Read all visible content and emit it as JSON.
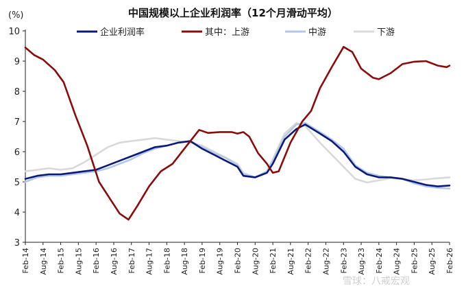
{
  "chart_data": {
    "type": "line",
    "title": "中国规模以上企业利润率（12个月滑动平均）",
    "unit_label": "(%)",
    "ylim": [
      3,
      10
    ],
    "yticks": [
      3,
      4,
      5,
      6,
      7,
      8,
      9,
      10
    ],
    "x_start": "2014-02",
    "x_end": "2026-02",
    "xticks": [
      "Feb-14",
      "Aug-14",
      "Feb-15",
      "Aug-15",
      "Feb-16",
      "Aug-16",
      "Feb-17",
      "Aug-17",
      "Feb-18",
      "Aug-18",
      "Feb-19",
      "Aug-19",
      "Feb-20",
      "Aug-20",
      "Feb-21",
      "Aug-21",
      "Feb-22",
      "Aug-22",
      "Feb-23",
      "Aug-23",
      "Feb-24",
      "Aug-24",
      "Feb-25",
      "Aug-25",
      "Feb-26"
    ],
    "grid": false,
    "legend_position": "top",
    "series": [
      {
        "name": "企业利润率",
        "color": "#0a1a7a",
        "points": [
          [
            "2014-02",
            5.1
          ],
          [
            "2014-06",
            5.2
          ],
          [
            "2014-10",
            5.25
          ],
          [
            "2015-02",
            5.25
          ],
          [
            "2015-06",
            5.3
          ],
          [
            "2015-10",
            5.35
          ],
          [
            "2016-02",
            5.4
          ],
          [
            "2016-06",
            5.55
          ],
          [
            "2016-10",
            5.7
          ],
          [
            "2017-02",
            5.85
          ],
          [
            "2017-06",
            6.0
          ],
          [
            "2017-10",
            6.15
          ],
          [
            "2018-02",
            6.2
          ],
          [
            "2018-06",
            6.3
          ],
          [
            "2018-10",
            6.35
          ],
          [
            "2019-02",
            6.1
          ],
          [
            "2019-06",
            5.9
          ],
          [
            "2019-10",
            5.7
          ],
          [
            "2020-02",
            5.5
          ],
          [
            "2020-04",
            5.2
          ],
          [
            "2020-08",
            5.15
          ],
          [
            "2020-12",
            5.3
          ],
          [
            "2021-02",
            5.6
          ],
          [
            "2021-06",
            6.4
          ],
          [
            "2021-10",
            6.75
          ],
          [
            "2022-01",
            6.9
          ],
          [
            "2022-06",
            6.6
          ],
          [
            "2022-10",
            6.35
          ],
          [
            "2023-02",
            6.0
          ],
          [
            "2023-06",
            5.5
          ],
          [
            "2023-10",
            5.25
          ],
          [
            "2024-02",
            5.15
          ],
          [
            "2024-06",
            5.15
          ],
          [
            "2024-10",
            5.1
          ],
          [
            "2025-02",
            5.0
          ],
          [
            "2025-06",
            4.9
          ],
          [
            "2025-10",
            4.85
          ],
          [
            "2026-02",
            4.88
          ]
        ]
      },
      {
        "name": "其中：上游",
        "color": "#8b0b0b",
        "points": [
          [
            "2014-02",
            9.45
          ],
          [
            "2014-05",
            9.2
          ],
          [
            "2014-08",
            9.05
          ],
          [
            "2014-12",
            8.7
          ],
          [
            "2015-03",
            8.3
          ],
          [
            "2015-07",
            7.2
          ],
          [
            "2015-11",
            6.2
          ],
          [
            "2016-03",
            5.0
          ],
          [
            "2016-07",
            4.4
          ],
          [
            "2016-10",
            3.95
          ],
          [
            "2017-01",
            3.75
          ],
          [
            "2017-04",
            4.2
          ],
          [
            "2017-08",
            4.85
          ],
          [
            "2017-12",
            5.35
          ],
          [
            "2018-04",
            5.6
          ],
          [
            "2018-08",
            6.1
          ],
          [
            "2019-01",
            6.72
          ],
          [
            "2019-04",
            6.62
          ],
          [
            "2019-08",
            6.65
          ],
          [
            "2019-12",
            6.65
          ],
          [
            "2020-02",
            6.6
          ],
          [
            "2020-04",
            6.65
          ],
          [
            "2020-06",
            6.5
          ],
          [
            "2020-09",
            5.95
          ],
          [
            "2020-12",
            5.6
          ],
          [
            "2021-02",
            5.3
          ],
          [
            "2021-04",
            5.35
          ],
          [
            "2021-08",
            6.3
          ],
          [
            "2021-12",
            7.0
          ],
          [
            "2022-03",
            7.35
          ],
          [
            "2022-06",
            8.1
          ],
          [
            "2022-10",
            8.8
          ],
          [
            "2023-01",
            9.3
          ],
          [
            "2023-02",
            9.47
          ],
          [
            "2023-05",
            9.3
          ],
          [
            "2023-08",
            8.75
          ],
          [
            "2023-12",
            8.45
          ],
          [
            "2024-02",
            8.4
          ],
          [
            "2024-06",
            8.6
          ],
          [
            "2024-10",
            8.9
          ],
          [
            "2025-02",
            8.98
          ],
          [
            "2025-06",
            9.0
          ],
          [
            "2025-10",
            8.85
          ],
          [
            "2026-01",
            8.8
          ],
          [
            "2026-02",
            8.85
          ]
        ]
      },
      {
        "name": "中游",
        "color": "#b4c7e7",
        "points": [
          [
            "2014-02",
            5.0
          ],
          [
            "2014-06",
            5.15
          ],
          [
            "2014-10",
            5.2
          ],
          [
            "2015-02",
            5.2
          ],
          [
            "2015-06",
            5.25
          ],
          [
            "2015-10",
            5.3
          ],
          [
            "2016-02",
            5.35
          ],
          [
            "2016-06",
            5.45
          ],
          [
            "2016-10",
            5.6
          ],
          [
            "2017-02",
            5.75
          ],
          [
            "2017-06",
            5.95
          ],
          [
            "2017-10",
            6.1
          ],
          [
            "2018-02",
            6.2
          ],
          [
            "2018-06",
            6.3
          ],
          [
            "2018-10",
            6.35
          ],
          [
            "2019-02",
            6.15
          ],
          [
            "2019-06",
            5.95
          ],
          [
            "2019-10",
            5.8
          ],
          [
            "2020-02",
            5.55
          ],
          [
            "2020-04",
            5.25
          ],
          [
            "2020-08",
            5.15
          ],
          [
            "2020-12",
            5.35
          ],
          [
            "2021-02",
            5.7
          ],
          [
            "2021-06",
            6.5
          ],
          [
            "2021-10",
            6.9
          ],
          [
            "2022-01",
            6.95
          ],
          [
            "2022-06",
            6.65
          ],
          [
            "2022-10",
            6.4
          ],
          [
            "2023-02",
            6.1
          ],
          [
            "2023-06",
            5.55
          ],
          [
            "2023-10",
            5.3
          ],
          [
            "2024-02",
            5.2
          ],
          [
            "2024-06",
            5.15
          ],
          [
            "2024-10",
            5.1
          ],
          [
            "2025-02",
            4.95
          ],
          [
            "2025-06",
            4.85
          ],
          [
            "2025-10",
            4.8
          ],
          [
            "2026-02",
            4.78
          ]
        ]
      },
      {
        "name": "下游",
        "color": "#d9d9d9",
        "points": [
          [
            "2014-02",
            5.35
          ],
          [
            "2014-06",
            5.4
          ],
          [
            "2014-10",
            5.45
          ],
          [
            "2015-02",
            5.4
          ],
          [
            "2015-06",
            5.45
          ],
          [
            "2015-10",
            5.65
          ],
          [
            "2016-02",
            5.9
          ],
          [
            "2016-06",
            6.15
          ],
          [
            "2016-10",
            6.3
          ],
          [
            "2017-02",
            6.35
          ],
          [
            "2017-06",
            6.4
          ],
          [
            "2017-10",
            6.45
          ],
          [
            "2018-02",
            6.4
          ],
          [
            "2018-06",
            6.35
          ],
          [
            "2018-10",
            6.3
          ],
          [
            "2019-02",
            6.2
          ],
          [
            "2019-06",
            6.0
          ],
          [
            "2019-10",
            5.8
          ],
          [
            "2020-02",
            5.6
          ],
          [
            "2020-04",
            5.3
          ],
          [
            "2020-08",
            5.15
          ],
          [
            "2020-12",
            5.35
          ],
          [
            "2021-02",
            5.75
          ],
          [
            "2021-06",
            6.6
          ],
          [
            "2021-10",
            6.95
          ],
          [
            "2022-01",
            6.85
          ],
          [
            "2022-06",
            6.3
          ],
          [
            "2022-10",
            5.9
          ],
          [
            "2023-02",
            5.5
          ],
          [
            "2023-06",
            5.1
          ],
          [
            "2023-10",
            4.98
          ],
          [
            "2024-02",
            5.05
          ],
          [
            "2024-06",
            5.12
          ],
          [
            "2024-10",
            5.1
          ],
          [
            "2025-02",
            5.05
          ],
          [
            "2025-06",
            5.08
          ],
          [
            "2025-10",
            5.12
          ],
          [
            "2026-02",
            5.15
          ]
        ]
      }
    ]
  },
  "watermark": "雪球：八戒宏观"
}
